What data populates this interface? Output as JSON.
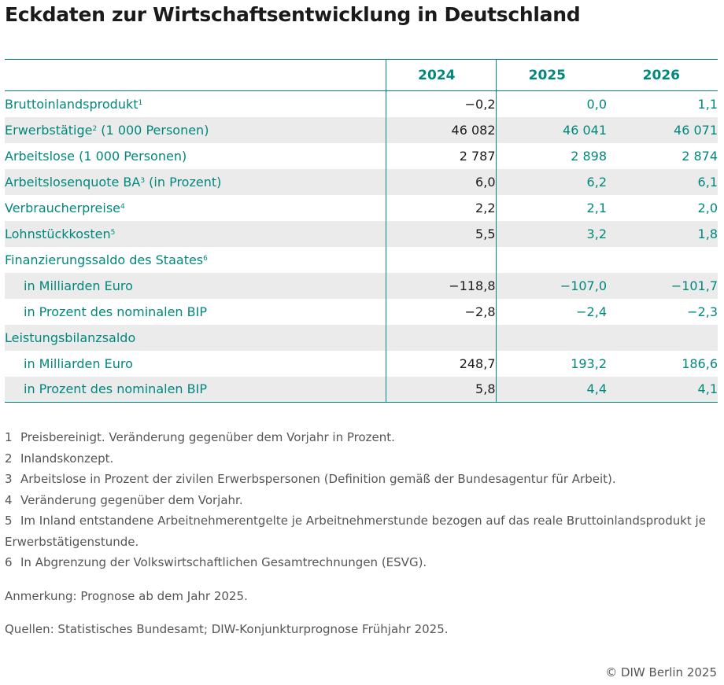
{
  "title": "Eckdaten zur Wirtschaftsentwicklung in Deutschland",
  "table": {
    "columns": [
      "2024",
      "2025",
      "2026"
    ],
    "rows": [
      {
        "label": "Bruttoinlandsprodukt",
        "sup": "1",
        "values": [
          "−0,2",
          "0,0",
          "1,1"
        ],
        "indent": false,
        "shaded": false
      },
      {
        "label": "Erwerbstätige",
        "sup": "2",
        "suffix": " (1 000 Personen)",
        "values": [
          "46 082",
          "46 041",
          "46 071"
        ],
        "indent": false,
        "shaded": true
      },
      {
        "label": "Arbeitslose (1 000 Personen)",
        "sup": "",
        "values": [
          "2 787",
          "2 898",
          "2 874"
        ],
        "indent": false,
        "shaded": false
      },
      {
        "label": "Arbeitslosenquote BA",
        "sup": "3",
        "suffix": " (in Prozent)",
        "values": [
          "6,0",
          "6,2",
          "6,1"
        ],
        "indent": false,
        "shaded": true
      },
      {
        "label": "Verbraucherpreise",
        "sup": "4",
        "values": [
          "2,2",
          "2,1",
          "2,0"
        ],
        "indent": false,
        "shaded": false
      },
      {
        "label": "Lohnstückkosten",
        "sup": "5",
        "values": [
          "5,5",
          "3,2",
          "1,8"
        ],
        "indent": false,
        "shaded": true
      },
      {
        "label": "Finanzierungssaldo des Staates",
        "sup": "6",
        "values": [
          "",
          "",
          ""
        ],
        "indent": false,
        "shaded": false
      },
      {
        "label": "in Milliarden Euro",
        "sup": "",
        "values": [
          "−118,8",
          "−107,0",
          "−101,7"
        ],
        "indent": true,
        "shaded": true
      },
      {
        "label": "in Prozent des nominalen BIP",
        "sup": "",
        "values": [
          "−2,8",
          "−2,4",
          "−2,3"
        ],
        "indent": true,
        "shaded": false
      },
      {
        "label": "Leistungsbilanzsaldo",
        "sup": "",
        "values": [
          "",
          "",
          ""
        ],
        "indent": false,
        "shaded": true
      },
      {
        "label": "in Milliarden Euro",
        "sup": "",
        "values": [
          "248,7",
          "193,2",
          "186,6"
        ],
        "indent": true,
        "shaded": false
      },
      {
        "label": "in Prozent des nominalen BIP",
        "sup": "",
        "values": [
          "5,8",
          "4,4",
          "4,1"
        ],
        "indent": true,
        "shaded": true
      }
    ]
  },
  "footnotes": [
    {
      "num": "1",
      "text": "Preisbereinigt. Veränderung gegenüber dem Vorjahr in Prozent."
    },
    {
      "num": "2",
      "text": "Inlandskonzept."
    },
    {
      "num": "3",
      "text": "Arbeitslose in Prozent der zivilen Erwerbspersonen (Definition gemäß der Bundesagentur für Arbeit)."
    },
    {
      "num": "4",
      "text": "Veränderung gegenüber dem Vorjahr."
    },
    {
      "num": "5",
      "text": "Im Inland entstandene Arbeitnehmerentgelte je Arbeitnehmerstunde bezogen auf das reale Bruttoinlandsprodukt je Erwerbstätigenstunde."
    },
    {
      "num": "6",
      "text": "In Abgrenzung der Volkswirtschaftlichen Gesamtrechnungen (ESVG)."
    }
  ],
  "note": "Anmerkung: Prognose ab dem Jahr 2025.",
  "sources": "Quellen: Statistisches Bundesamt; DIW-Konjunkturprognose Frühjahr 2025.",
  "credit": "© DIW Berlin 2025",
  "colors": {
    "accent": "#00887c",
    "shade": "#ebebeb",
    "text": "#1a1a1a",
    "muted": "#555555"
  }
}
